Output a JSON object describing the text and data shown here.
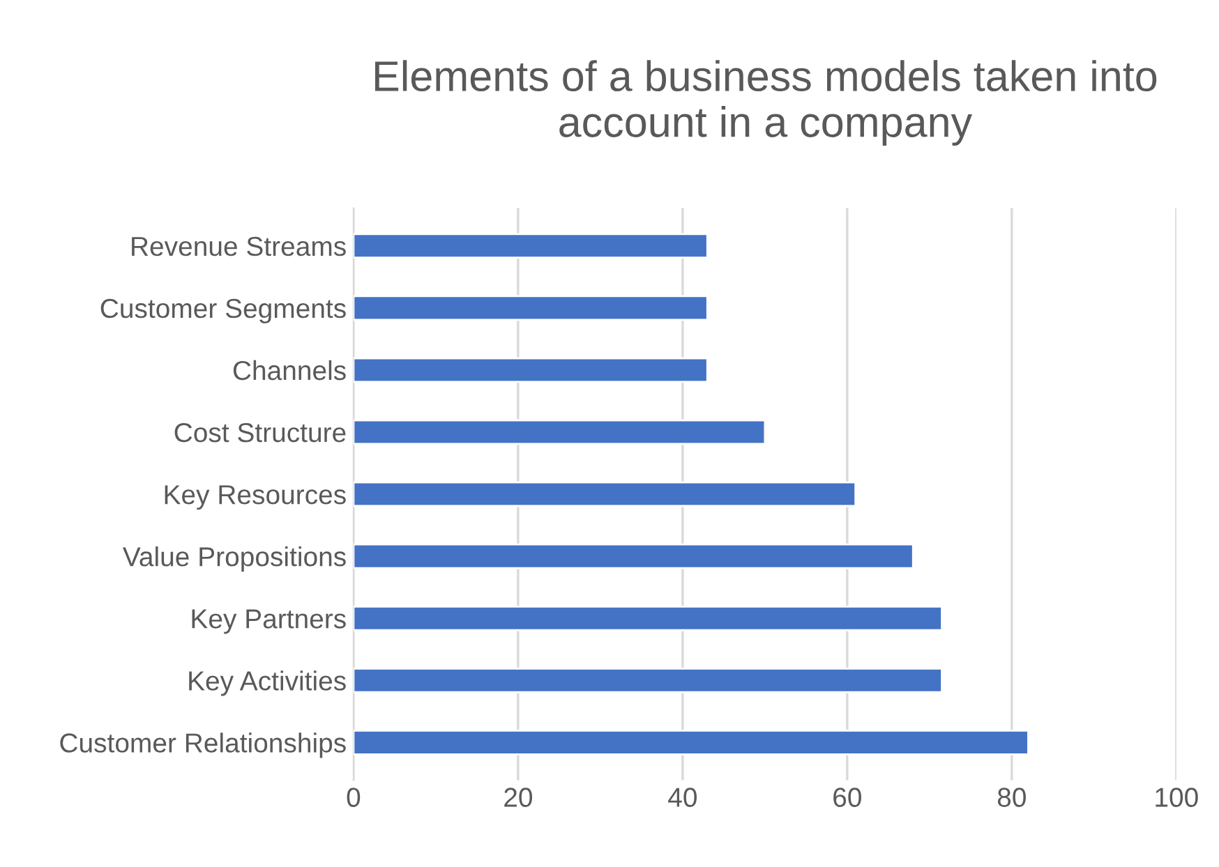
{
  "chart_data": {
    "type": "bar",
    "orientation": "horizontal",
    "title": "Elements of a business models taken into account in a company",
    "categories": [
      "Revenue Streams",
      "Customer Segments",
      "Channels",
      "Cost Structure",
      "Key Resources",
      "Value Propositions",
      "Key Partners",
      "Key Activities",
      "Customer Relationships"
    ],
    "values": [
      43,
      43,
      43,
      50,
      61,
      68,
      71.5,
      71.5,
      82
    ],
    "color": "#4472c4",
    "xlim": [
      0,
      100
    ],
    "xticks": [
      0,
      20,
      40,
      60,
      80,
      100
    ],
    "grid": "x",
    "legend": false
  }
}
